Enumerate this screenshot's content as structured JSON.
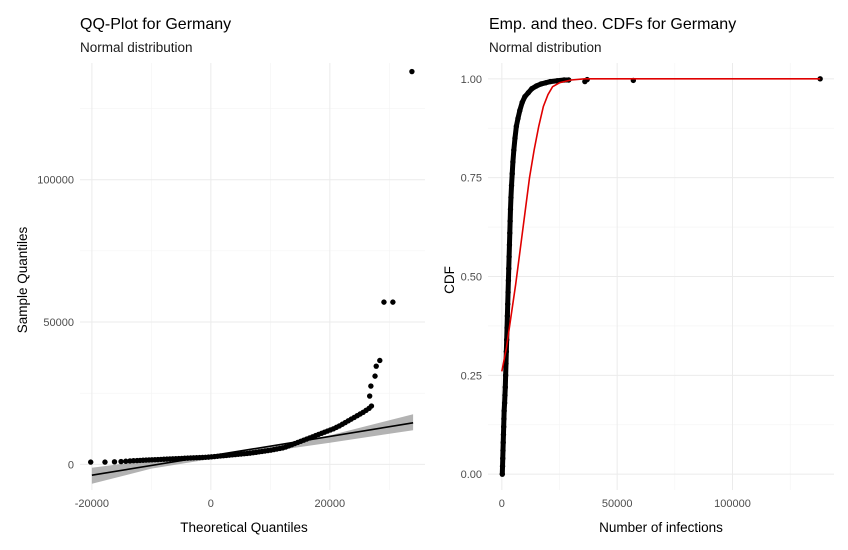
{
  "chart_data": [
    {
      "type": "scatter",
      "title": "QQ-Plot for Germany",
      "subtitle": "Normal distribution",
      "xlabel": "Theoretical Quantiles",
      "ylabel": "Sample Quantiles",
      "xlim": [
        -22000,
        36000
      ],
      "ylim": [
        -9000,
        141000
      ],
      "x_ticks": [
        -20000,
        0,
        20000
      ],
      "x_tick_labels": [
        "-20000",
        "0",
        "20000"
      ],
      "y_ticks": [
        0,
        50000,
        100000
      ],
      "y_tick_labels": [
        "0",
        "50000",
        "100000"
      ],
      "grid": true,
      "reference_line": {
        "x": [
          -20000,
          34000
        ],
        "y": [
          -3800,
          14600
        ]
      },
      "confidence_band": {
        "x": [
          -20000,
          -10000,
          0,
          10000,
          20000,
          34000
        ],
        "lower": [
          -6800,
          -1500,
          1900,
          4600,
          7600,
          12000
        ],
        "upper": [
          -1200,
          1500,
          3300,
          6400,
          10200,
          17600
        ]
      },
      "series": [
        {
          "points": [
            [
              -20200,
              800
            ],
            [
              -17800,
              800
            ],
            [
              -16200,
              900
            ],
            [
              -15100,
              1000
            ],
            [
              -14300,
              1100
            ],
            [
              -13600,
              1200
            ],
            [
              -13000,
              1300
            ],
            [
              -12400,
              1350
            ],
            [
              -11900,
              1400
            ],
            [
              -11400,
              1450
            ],
            [
              -10900,
              1500
            ],
            [
              -10400,
              1550
            ],
            [
              -9900,
              1600
            ],
            [
              -9400,
              1650
            ],
            [
              -8900,
              1700
            ],
            [
              -8400,
              1750
            ],
            [
              -7900,
              1800
            ],
            [
              -7400,
              1850
            ],
            [
              -6900,
              1900
            ],
            [
              -6400,
              1950
            ],
            [
              -5900,
              2000
            ],
            [
              -5400,
              2050
            ],
            [
              -4900,
              2100
            ],
            [
              -4400,
              2150
            ],
            [
              -3900,
              2200
            ],
            [
              -3400,
              2250
            ],
            [
              -2900,
              2300
            ],
            [
              -2400,
              2350
            ],
            [
              -1900,
              2400
            ],
            [
              -1400,
              2450
            ],
            [
              -900,
              2500
            ],
            [
              -400,
              2550
            ],
            [
              100,
              2650
            ],
            [
              600,
              2750
            ],
            [
              1100,
              2850
            ],
            [
              1600,
              2950
            ],
            [
              2100,
              3050
            ],
            [
              2600,
              3150
            ],
            [
              3100,
              3250
            ],
            [
              3600,
              3350
            ],
            [
              4100,
              3450
            ],
            [
              4600,
              3550
            ],
            [
              5100,
              3650
            ],
            [
              5600,
              3750
            ],
            [
              6100,
              3850
            ],
            [
              6600,
              3950
            ],
            [
              7100,
              4100
            ],
            [
              7600,
              4250
            ],
            [
              8100,
              4400
            ],
            [
              8600,
              4550
            ],
            [
              9100,
              4700
            ],
            [
              9600,
              4850
            ],
            [
              10100,
              5000
            ],
            [
              10600,
              5200
            ],
            [
              11100,
              5400
            ],
            [
              11600,
              5600
            ],
            [
              12100,
              5800
            ],
            [
              12600,
              6100
            ],
            [
              13100,
              6500
            ],
            [
              13600,
              6900
            ],
            [
              14100,
              7300
            ],
            [
              14600,
              7700
            ],
            [
              15100,
              8100
            ],
            [
              15600,
              8500
            ],
            [
              16100,
              8900
            ],
            [
              16600,
              9300
            ],
            [
              17100,
              9700
            ],
            [
              17600,
              10100
            ],
            [
              18100,
              10500
            ],
            [
              18600,
              10900
            ],
            [
              19100,
              11300
            ],
            [
              19600,
              11700
            ],
            [
              20100,
              12100
            ],
            [
              20600,
              12500
            ],
            [
              21100,
              13000
            ],
            [
              21600,
              13500
            ],
            [
              22100,
              14100
            ],
            [
              22600,
              14700
            ],
            [
              23100,
              15300
            ],
            [
              23600,
              15900
            ],
            [
              24100,
              16500
            ],
            [
              24600,
              17100
            ],
            [
              25100,
              17700
            ],
            [
              25600,
              18300
            ],
            [
              26100,
              19000
            ],
            [
              26600,
              19700
            ],
            [
              27000,
              20500
            ],
            [
              26700,
              24000
            ],
            [
              26900,
              27500
            ],
            [
              27600,
              31000
            ],
            [
              27800,
              34500
            ],
            [
              28400,
              36500
            ],
            [
              29100,
              57000
            ],
            [
              30600,
              57000
            ],
            [
              33800,
              138000
            ]
          ]
        }
      ]
    },
    {
      "type": "line",
      "title": "Emp. and theo. CDFs for Germany",
      "subtitle": "Normal distribution",
      "xlabel": "Number of infections",
      "ylabel": "CDF",
      "xlim": [
        -6000,
        144000
      ],
      "ylim": [
        -0.04,
        1.04
      ],
      "x_ticks": [
        0,
        50000,
        100000
      ],
      "x_tick_labels": [
        "0",
        "50000",
        "100000"
      ],
      "y_ticks": [
        0,
        0.25,
        0.5,
        0.75,
        1
      ],
      "y_tick_labels": [
        "0.00",
        "0.25",
        "0.50",
        "0.75",
        "1.00"
      ],
      "grid": true,
      "series": [
        {
          "kind": "empirical",
          "color": "#000000",
          "points": [
            [
              200,
              0.0
            ],
            [
              300,
              0.02
            ],
            [
              400,
              0.04
            ],
            [
              500,
              0.06
            ],
            [
              600,
              0.08
            ],
            [
              700,
              0.1
            ],
            [
              800,
              0.12
            ],
            [
              900,
              0.14
            ],
            [
              1000,
              0.16
            ],
            [
              1200,
              0.18
            ],
            [
              1350,
              0.2
            ],
            [
              1500,
              0.22
            ],
            [
              1650,
              0.25
            ],
            [
              1800,
              0.28
            ],
            [
              1950,
              0.31
            ],
            [
              2100,
              0.34
            ],
            [
              2250,
              0.37
            ],
            [
              2400,
              0.4
            ],
            [
              2550,
              0.43
            ],
            [
              2700,
              0.46
            ],
            [
              2850,
              0.49
            ],
            [
              3000,
              0.52
            ],
            [
              3150,
              0.55
            ],
            [
              3300,
              0.58
            ],
            [
              3450,
              0.61
            ],
            [
              3600,
              0.64
            ],
            [
              3750,
              0.67
            ],
            [
              3950,
              0.7
            ],
            [
              4200,
              0.73
            ],
            [
              4500,
              0.76
            ],
            [
              4800,
              0.79
            ],
            [
              5200,
              0.82
            ],
            [
              5700,
              0.85
            ],
            [
              6300,
              0.88
            ],
            [
              7000,
              0.9
            ],
            [
              7800,
              0.92
            ],
            [
              8800,
              0.94
            ],
            [
              10000,
              0.955
            ],
            [
              11500,
              0.965
            ],
            [
              13000,
              0.975
            ],
            [
              15000,
              0.982
            ],
            [
              17000,
              0.987
            ],
            [
              19000,
              0.99
            ],
            [
              21000,
              0.993
            ],
            [
              24000,
              0.995
            ],
            [
              27000,
              0.997
            ],
            [
              29000,
              0.997
            ],
            [
              36000,
              0.993
            ],
            [
              37000,
              0.998
            ],
            [
              57000,
              0.996
            ],
            [
              138000,
              1.0
            ]
          ]
        },
        {
          "kind": "theoretical",
          "color": "#e00000",
          "points": [
            [
              0,
              0.26
            ],
            [
              2000,
              0.32
            ],
            [
              4000,
              0.4
            ],
            [
              6000,
              0.48
            ],
            [
              8000,
              0.57
            ],
            [
              10000,
              0.66
            ],
            [
              12000,
              0.75
            ],
            [
              14000,
              0.82
            ],
            [
              16000,
              0.88
            ],
            [
              18000,
              0.93
            ],
            [
              20000,
              0.96
            ],
            [
              22000,
              0.98
            ],
            [
              25000,
              0.99
            ],
            [
              30000,
              0.997
            ],
            [
              36000,
              1.0
            ],
            [
              138000,
              1.0
            ]
          ]
        }
      ]
    }
  ]
}
